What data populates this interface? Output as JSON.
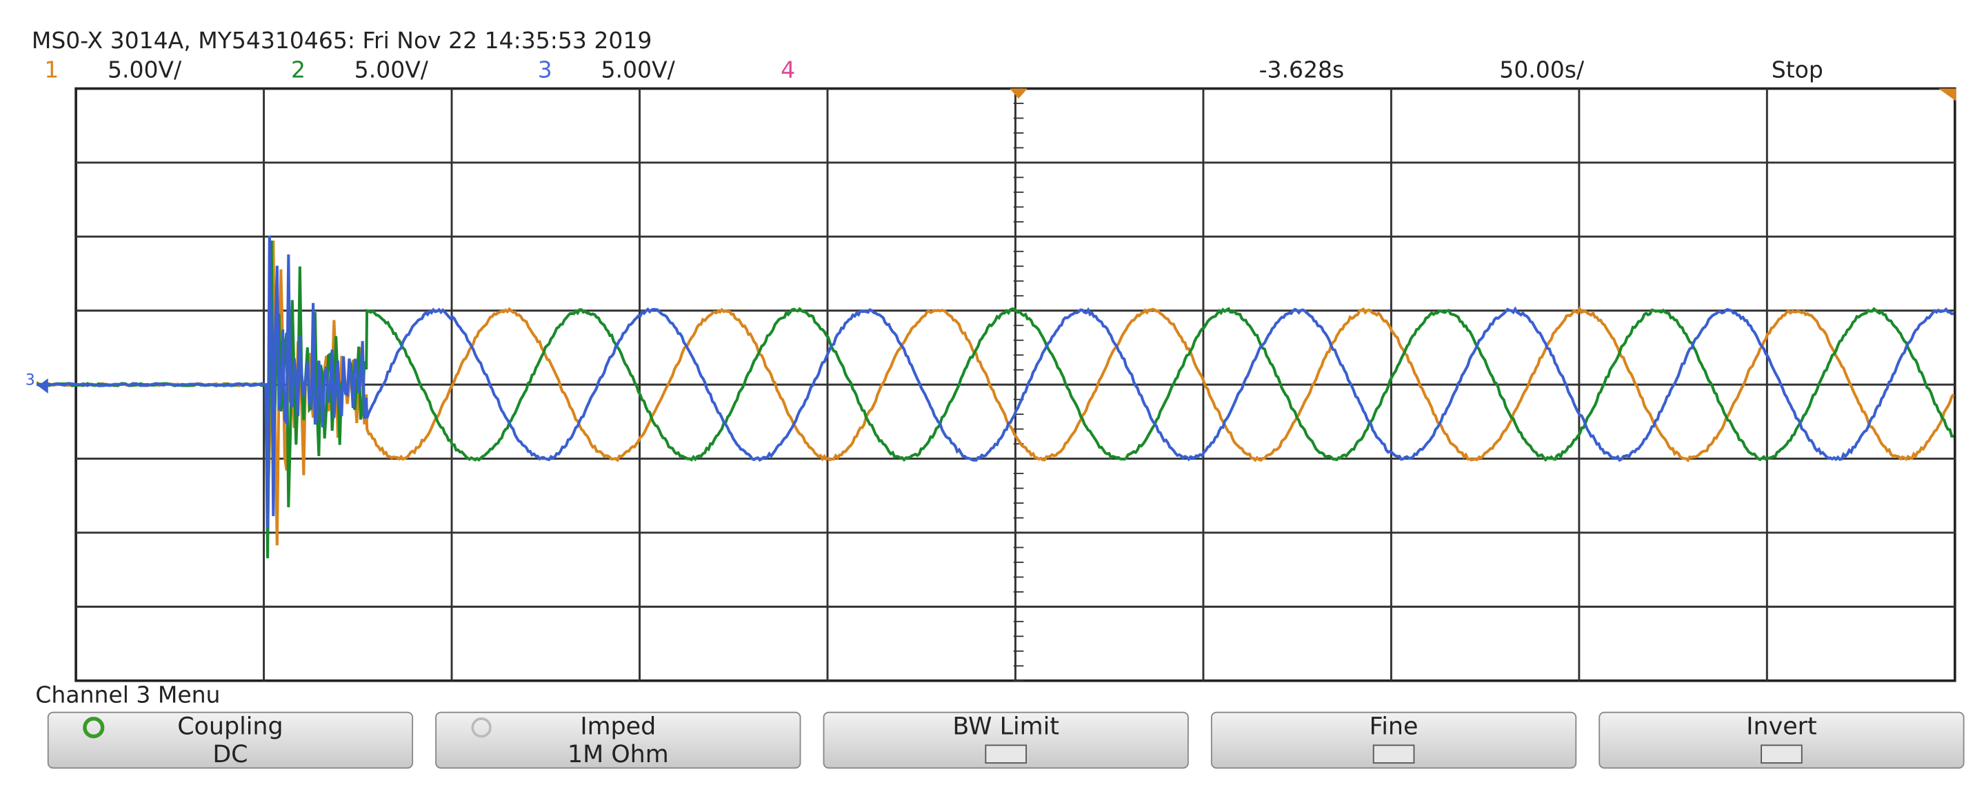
{
  "header": {
    "title": "MS0-X 3014A, MY54310465: Fri Nov 22 14:35:53 2019",
    "channels": [
      {
        "label": "1",
        "scale": "5.00V/"
      },
      {
        "label": "2",
        "scale": "5.00V/"
      },
      {
        "label": "3",
        "scale": "5.00V/"
      },
      {
        "label": "4"
      }
    ],
    "time_offset": "-3.628s",
    "time_scale": "50.00s/",
    "status": "Stop"
  },
  "screen": {
    "ground_marker": "3"
  },
  "menu": {
    "title": "Channel 3 Menu",
    "buttons": [
      {
        "label": "Coupling",
        "value": "DC"
      },
      {
        "label": "Imped",
        "value": "1M Ohm"
      },
      {
        "label": "BW Limit"
      },
      {
        "label": "Fine"
      },
      {
        "label": "Invert"
      }
    ]
  }
}
